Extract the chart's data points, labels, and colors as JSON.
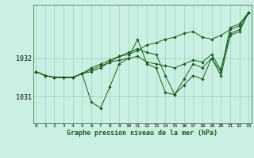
{
  "title": "Graphe pression niveau de la mer (hPa)",
  "bg_color": "#caf0e4",
  "line_color": "#1a5c1a",
  "grid_color": "#88ccaa",
  "x_ticks": [
    0,
    1,
    2,
    3,
    4,
    5,
    6,
    7,
    8,
    9,
    10,
    11,
    12,
    13,
    14,
    15,
    16,
    17,
    18,
    19,
    20,
    21,
    22,
    23
  ],
  "ylim": [
    1030.3,
    1033.4
  ],
  "yticks": [
    1031,
    1032
  ],
  "lines": [
    [
      1031.65,
      1031.55,
      1031.5,
      1031.5,
      1031.5,
      1031.6,
      1031.65,
      1031.75,
      1031.9,
      1032.05,
      1032.1,
      1032.2,
      1032.35,
      1032.4,
      1032.5,
      1032.55,
      1032.65,
      1032.7,
      1032.55,
      1032.5,
      1032.6,
      1032.75,
      1032.85,
      1033.2
    ],
    [
      1031.65,
      1031.55,
      1031.5,
      1031.5,
      1031.5,
      1031.6,
      1031.7,
      1031.8,
      1031.9,
      1031.95,
      1032.0,
      1032.05,
      1031.9,
      1031.85,
      1031.8,
      1031.75,
      1031.85,
      1031.95,
      1031.9,
      1032.1,
      1031.7,
      1032.65,
      1032.75,
      1033.2
    ],
    [
      1031.65,
      1031.55,
      1031.5,
      1031.5,
      1031.5,
      1031.6,
      1031.75,
      1031.85,
      1031.95,
      1032.05,
      1032.15,
      1032.25,
      1032.15,
      1032.1,
      1031.55,
      1031.05,
      1031.45,
      1031.85,
      1031.75,
      1032.0,
      1031.55,
      1032.6,
      1032.7,
      1033.2
    ],
    [
      1031.65,
      1031.55,
      1031.5,
      1031.5,
      1031.5,
      1031.6,
      1030.85,
      1030.7,
      1031.25,
      1031.85,
      1032.0,
      1032.5,
      1031.85,
      1031.75,
      1031.1,
      1031.05,
      1031.3,
      1031.55,
      1031.45,
      1032.0,
      1031.65,
      1032.8,
      1032.9,
      1033.2
    ]
  ],
  "figsize": [
    3.2,
    2.0
  ],
  "dpi": 100
}
